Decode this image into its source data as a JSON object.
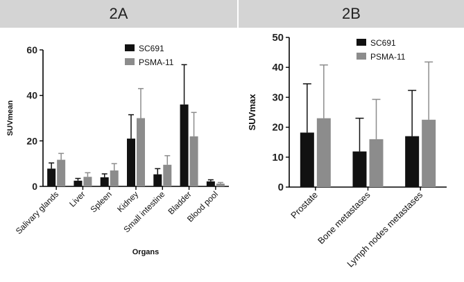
{
  "panels": {
    "a_title": "2A",
    "b_title": "2B"
  },
  "colors": {
    "sc691": "#111111",
    "psma11": "#8c8c8c",
    "axis": "#000000"
  },
  "chart_data": [
    {
      "id": "2A",
      "type": "bar",
      "title": "2A",
      "xlabel": "Organs",
      "ylabel": "SUVmean",
      "ylim": [
        0,
        60
      ],
      "yticks": [
        0,
        20,
        40,
        60
      ],
      "categories": [
        "Salivary glands",
        "Liver",
        "Spleen",
        "Kidney",
        "Small intestine",
        "Bladder",
        "Blood pool"
      ],
      "series": [
        {
          "name": "SC691",
          "values": [
            7.8,
            2.5,
            4.0,
            21.0,
            5.3,
            36.0,
            2.2
          ],
          "errors": [
            2.5,
            1.0,
            1.5,
            10.5,
            2.5,
            17.5,
            0.7
          ]
        },
        {
          "name": "PSMA-11",
          "values": [
            11.7,
            4.2,
            7.0,
            30.0,
            9.5,
            22.0,
            1.2
          ],
          "errors": [
            2.8,
            1.8,
            3.0,
            13.0,
            4.0,
            10.5,
            0.5
          ]
        }
      ],
      "legend": "top-center"
    },
    {
      "id": "2B",
      "type": "bar",
      "title": "2B",
      "xlabel": "",
      "ylabel": "SUVmax",
      "ylim": [
        0,
        50
      ],
      "yticks": [
        0,
        10,
        20,
        30,
        40,
        50
      ],
      "categories": [
        "Prostate",
        "Bone metastases",
        "Lymph nodes metastases"
      ],
      "series": [
        {
          "name": "SC691",
          "values": [
            18.2,
            11.9,
            17.0
          ],
          "errors": [
            16.3,
            11.1,
            15.3
          ]
        },
        {
          "name": "PSMA-11",
          "values": [
            23.0,
            16.0,
            22.5
          ],
          "errors": [
            17.8,
            13.3,
            19.3
          ]
        }
      ],
      "legend": "top-center"
    }
  ]
}
